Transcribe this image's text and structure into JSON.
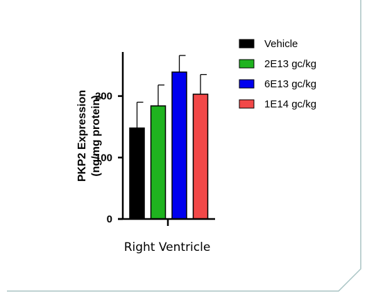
{
  "chart_data": {
    "type": "bar",
    "title": "",
    "xlabel": "Right Ventricle",
    "ylabel_line1": "PKP2 Expression",
    "ylabel_line2": "(ng/mg protein)",
    "ylim": [
      0,
      270
    ],
    "yticks": [
      0,
      100,
      200
    ],
    "yticks_labels": [
      "0",
      "100",
      "200"
    ],
    "categories": [
      "Right Ventricle"
    ],
    "legend_position": "right",
    "grid": false,
    "series": [
      {
        "name": "Vehicle",
        "value": 148,
        "error": 42,
        "color": "#000000"
      },
      {
        "name": "2E13 gc/kg",
        "value": 184,
        "error": 34,
        "color": "#1fb31f"
      },
      {
        "name": "6E13 gc/kg",
        "value": 239,
        "error": 27,
        "color": "#0000ee"
      },
      {
        "name": "1E14 gc/kg",
        "value": 203,
        "error": 32,
        "color": "#f24848"
      }
    ]
  },
  "frame": {
    "border_color": "#a8c4c4"
  }
}
